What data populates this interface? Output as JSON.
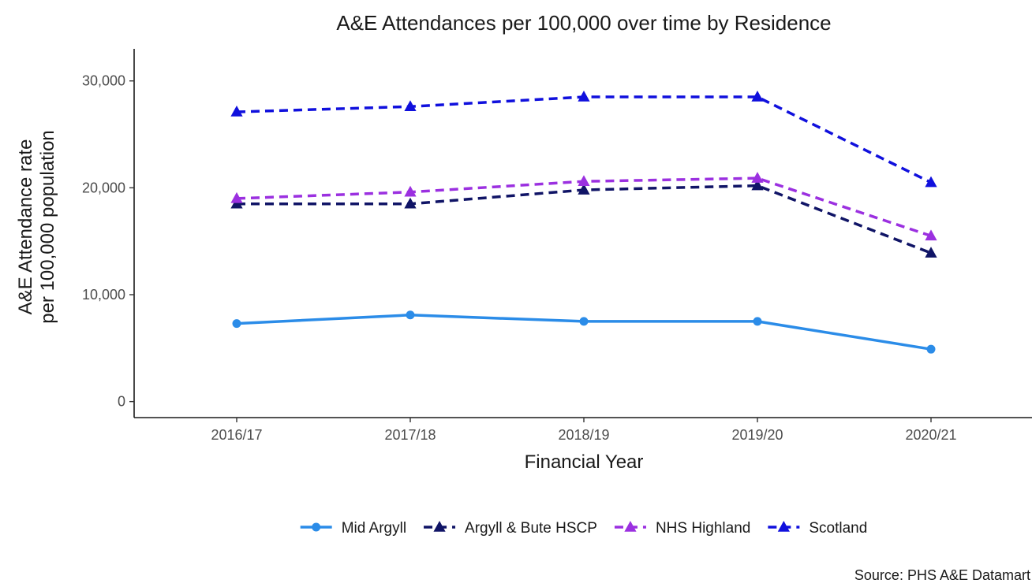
{
  "chart_data": {
    "type": "line",
    "title": "A&E Attendances per 100,000 over time by Residence",
    "xlabel": "Financial Year",
    "ylabel_lines": [
      "A&E Attendance rate",
      "per 100,000 population"
    ],
    "categories": [
      "2016/17",
      "2017/18",
      "2018/19",
      "2019/20",
      "2020/21"
    ],
    "ylim": [
      -1500,
      33000
    ],
    "yticks": [
      0,
      10000,
      20000,
      30000
    ],
    "ytick_labels": [
      "0",
      "10,000",
      "20,000",
      "30,000"
    ],
    "grid": false,
    "legend_position": "bottom",
    "caption": "Source: PHS A&E Datamart",
    "series": [
      {
        "name": "Mid Argyll",
        "values": [
          7300,
          8100,
          7500,
          7500,
          4900
        ],
        "color": "#2b8ce8",
        "line_style": "solid",
        "marker": "circle"
      },
      {
        "name": "Argyll & Bute HSCP",
        "values": [
          18500,
          18500,
          19800,
          20200,
          13900
        ],
        "color": "#101466",
        "line_style": "dashed",
        "marker": "triangle"
      },
      {
        "name": "NHS Highland",
        "values": [
          19000,
          19600,
          20600,
          20900,
          15500
        ],
        "color": "#9b30e0",
        "line_style": "dashed",
        "marker": "triangle"
      },
      {
        "name": "Scotland",
        "values": [
          27100,
          27600,
          28500,
          28500,
          20500
        ],
        "color": "#1010dd",
        "line_style": "dashed",
        "marker": "triangle"
      }
    ]
  }
}
